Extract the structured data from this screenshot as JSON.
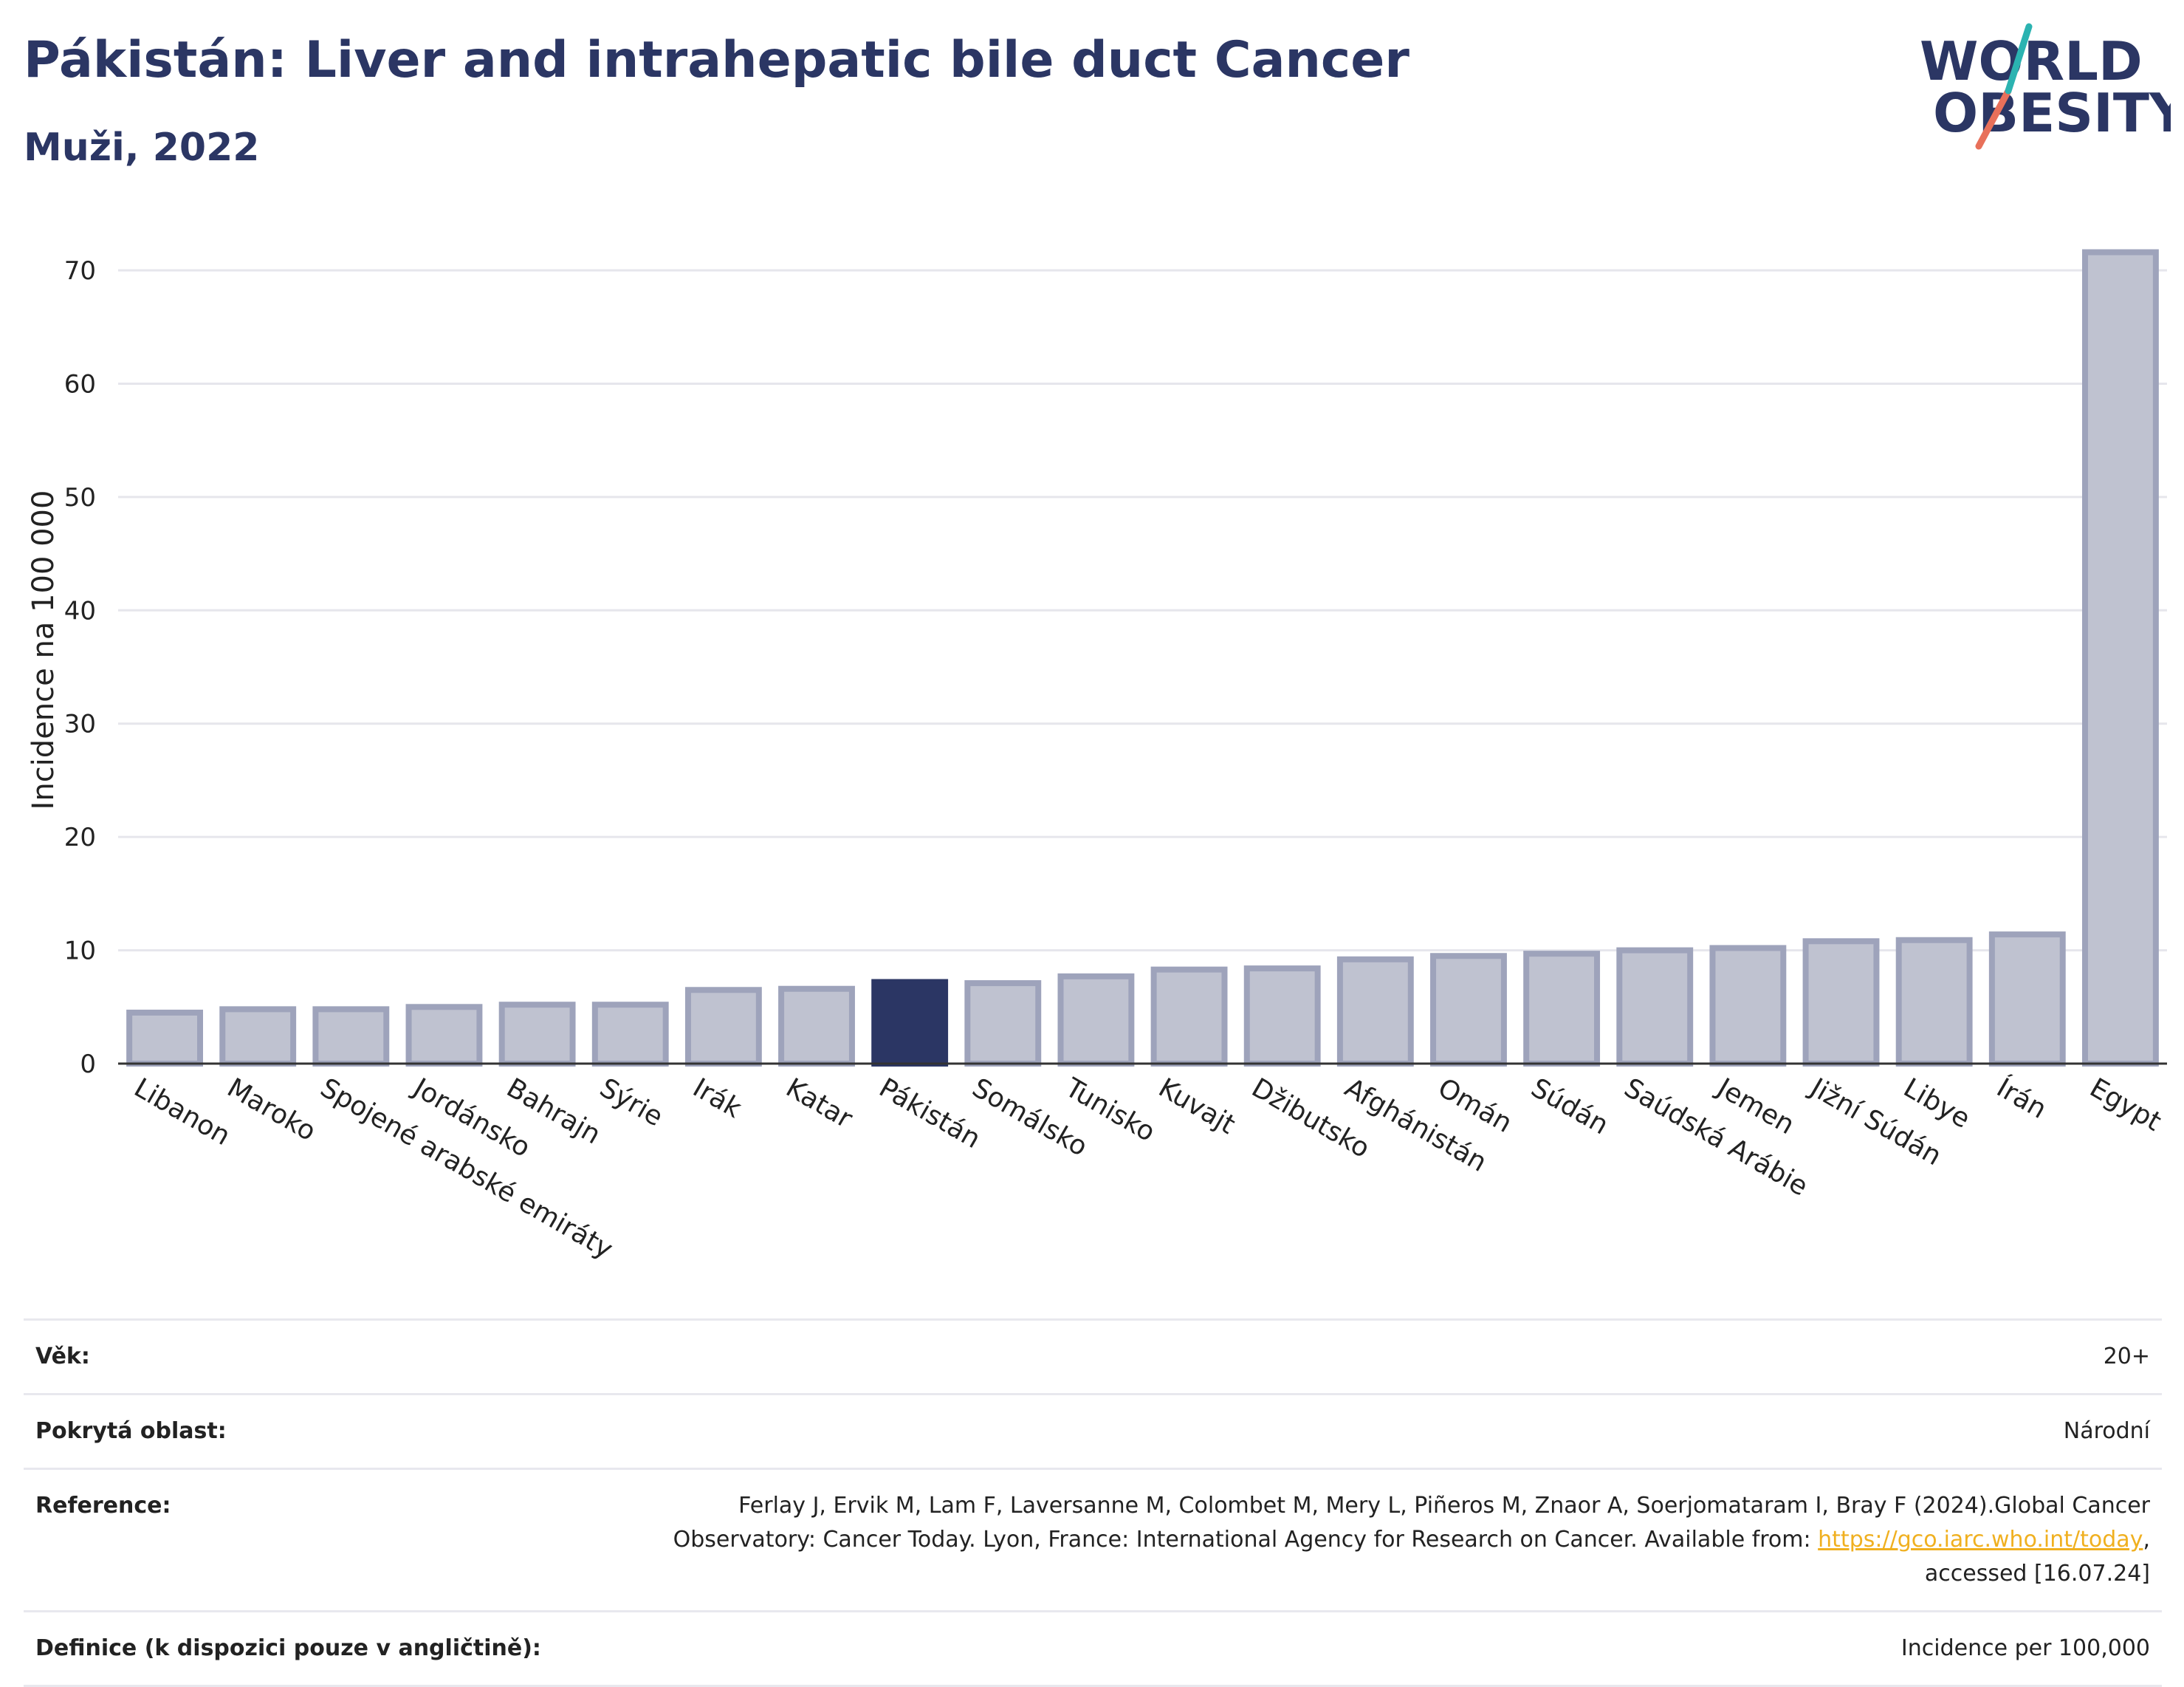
{
  "header": {
    "title": "Pákistán: Liver and intrahepatic bile duct Cancer",
    "subtitle": "Muži, 2022"
  },
  "logo": {
    "line1": "WORLD",
    "line2": "OBESITY"
  },
  "colors": {
    "highlight": "#2b3664",
    "bar_fill": "#bfc2d0",
    "bar_stroke": "#9ea3bb",
    "grid": "#e6e6ec",
    "logo_teal": "#2bb3b1",
    "logo_coral": "#e8705a"
  },
  "chart_data": {
    "type": "bar",
    "ylabel": "Incidence na 100 000",
    "ylim": [
      0,
      73
    ],
    "yticks": [
      0,
      10,
      20,
      30,
      40,
      50,
      60,
      70
    ],
    "grid": true,
    "highlight": "Pákistán",
    "categories": [
      "Libanon",
      "Maroko",
      "Spojené arabské emiráty",
      "Jordánsko",
      "Bahrajn",
      "Sýrie",
      "Irák",
      "Katar",
      "Pákistán",
      "Somálsko",
      "Tunisko",
      "Kuvajt",
      "Džibutsko",
      "Afghánistán",
      "Omán",
      "Súdán",
      "Saúdská Arábie",
      "Jemen",
      "Jižní Súdán",
      "Libye",
      "Írán",
      "Egypt"
    ],
    "values": [
      4.5,
      4.8,
      4.8,
      5.0,
      5.2,
      5.2,
      6.5,
      6.6,
      7.2,
      7.1,
      7.7,
      8.3,
      8.4,
      9.2,
      9.5,
      9.7,
      10.0,
      10.2,
      10.8,
      10.9,
      11.4,
      71.6
    ]
  },
  "info": {
    "age_label": "Věk:",
    "age_value": "20+",
    "coverage_label": "Pokrytá oblast:",
    "coverage_value": "Národní",
    "reference_label": "Reference:",
    "reference_text_1": "Ferlay J, Ervik M, Lam F, Laversanne M, Colombet M, Mery L, Piñeros M, Znaor A, Soerjomataram I, Bray F (2024).Global Cancer Observatory: Cancer Today. Lyon, France: International Agency for Research on Cancer. Available from: ",
    "reference_link": "https://gco.iarc.who.int/today",
    "reference_text_2": ", accessed [16.07.24]",
    "definition_label": "Definice (k dispozici pouze v angličtině):",
    "definition_value": "Incidence per 100,000"
  }
}
